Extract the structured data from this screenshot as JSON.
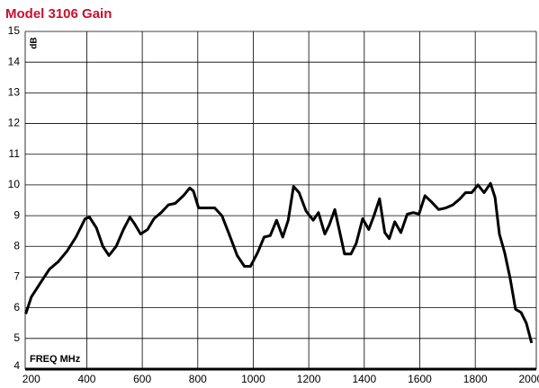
{
  "chart_data": {
    "type": "line",
    "title": "Model 3106 Gain",
    "y_label": "dB",
    "x_label": "FREQ MHz",
    "x": [
      180,
      200,
      232,
      265,
      297,
      329,
      361,
      394,
      410,
      435,
      458,
      480,
      506,
      532,
      555,
      571,
      594,
      619,
      642,
      668,
      694,
      719,
      748,
      771,
      784,
      803,
      829,
      861,
      887,
      913,
      942,
      968,
      990,
      1016,
      1039,
      1061,
      1084,
      1106,
      1126,
      1145,
      1165,
      1190,
      1216,
      1235,
      1258,
      1274,
      1294,
      1306,
      1329,
      1352,
      1371,
      1394,
      1416,
      1435,
      1455,
      1474,
      1490,
      1510,
      1532,
      1555,
      1577,
      1597,
      1619,
      1642,
      1668,
      1694,
      1719,
      1745,
      1765,
      1787,
      1810,
      1832,
      1855,
      1871,
      1887,
      1906,
      1926,
      1945,
      1965,
      1984,
      2003
    ],
    "series": [
      {
        "name": "Gain",
        "color": "#000000",
        "values": [
          5.8,
          6.35,
          6.8,
          7.25,
          7.5,
          7.85,
          8.3,
          8.9,
          8.95,
          8.6,
          8.0,
          7.7,
          8.0,
          8.55,
          8.95,
          8.75,
          8.4,
          8.55,
          8.9,
          9.1,
          9.35,
          9.4,
          9.65,
          9.9,
          9.8,
          9.25,
          9.25,
          9.25,
          9.0,
          8.4,
          7.7,
          7.35,
          7.35,
          7.8,
          8.3,
          8.35,
          8.85,
          8.3,
          8.85,
          9.95,
          9.75,
          9.15,
          8.85,
          9.1,
          8.4,
          8.7,
          9.2,
          8.7,
          7.75,
          7.75,
          8.1,
          8.9,
          8.55,
          9.0,
          9.55,
          8.45,
          8.25,
          8.8,
          8.45,
          9.05,
          9.1,
          9.05,
          9.65,
          9.45,
          9.2,
          9.25,
          9.35,
          9.55,
          9.75,
          9.75,
          10.0,
          9.75,
          10.05,
          9.6,
          8.4,
          7.8,
          6.95,
          5.95,
          5.85,
          5.5,
          4.85
        ]
      }
    ],
    "xlim": [
      178,
      2020
    ],
    "xticks": [
      200,
      400,
      600,
      800,
      1000,
      1200,
      1400,
      1600,
      1800,
      2000
    ],
    "ylim": [
      4,
      15
    ],
    "yticks": [
      4,
      5,
      6,
      7,
      8,
      9,
      10,
      11,
      12,
      13,
      14,
      15
    ],
    "grid": true,
    "title_color": "#c8102e"
  }
}
